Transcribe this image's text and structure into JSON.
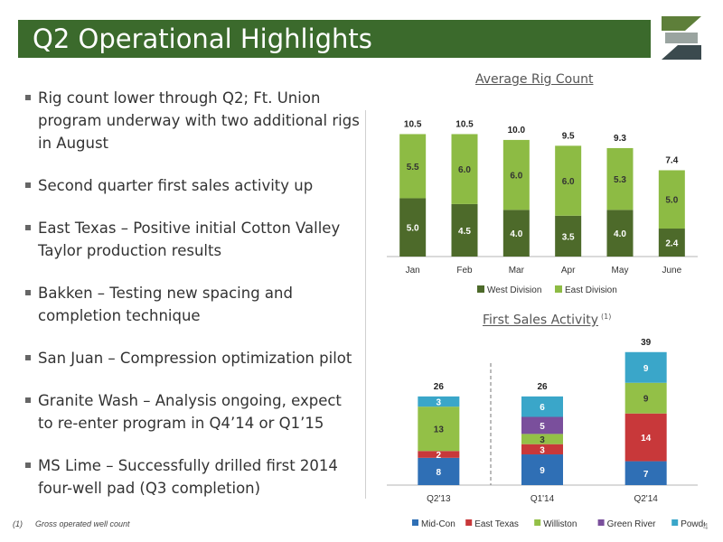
{
  "slide": {
    "title": "Q2 Operational Highlights",
    "page_number": "4",
    "footnote_marker": "(1)",
    "footnote_text": "Gross operated well count"
  },
  "bullets": [
    "Rig count lower through Q2; Ft. Union program underway with two additional rigs in August",
    "Second quarter first sales activity up",
    "East Texas – Positive initial Cotton Valley Taylor production results",
    "Bakken – Testing new spacing and completion technique",
    "San Juan – Compression optimization pilot",
    "Granite Wash – Analysis ongoing, expect to re-enter program in Q4’14 or Q1’15",
    "MS Lime – Successfully drilled first 2014 four-well pad (Q3 completion)"
  ],
  "colors": {
    "title_bar": "#3b6a2c",
    "west_division": "#4d6a2a",
    "east_division": "#8dbb44",
    "mid_con": "#2f6fb5",
    "east_texas": "#c8383a",
    "williston": "#93c047",
    "green_river": "#7a4f9c",
    "powder_river": "#3aa6c9"
  },
  "chart_data": [
    {
      "type": "bar",
      "stacked": true,
      "title": "Average Rig Count",
      "categories": [
        "Jan",
        "Feb",
        "Mar",
        "Apr",
        "May",
        "June"
      ],
      "series": [
        {
          "name": "West Division",
          "values": [
            5.0,
            4.5,
            4.0,
            3.5,
            4.0,
            2.4
          ],
          "labels": [
            "5.0",
            "4.5",
            "4.0",
            "3.5",
            "4.0",
            "2.4"
          ]
        },
        {
          "name": "East Division",
          "values": [
            5.5,
            6.0,
            6.0,
            6.0,
            5.3,
            5.0
          ],
          "labels": [
            "5.5",
            "6.0",
            "6.0",
            "6.0",
            "5.3",
            "5.0"
          ]
        }
      ],
      "totals": [
        "10.5",
        "10.5",
        "10.0",
        "9.5",
        "9.3",
        "7.4"
      ],
      "ylim": [
        0,
        11
      ],
      "legend": "bottom",
      "grid": false
    },
    {
      "type": "bar",
      "stacked": true,
      "title": "First Sales Activity",
      "title_superscript": "(1)",
      "categories": [
        "Q2'13",
        "Q1'14",
        "Q2'14"
      ],
      "series": [
        {
          "name": "Mid-Con",
          "values": [
            8,
            9,
            7
          ]
        },
        {
          "name": "East Texas",
          "values": [
            2,
            3,
            14
          ]
        },
        {
          "name": "Williston",
          "values": [
            13,
            3,
            9
          ]
        },
        {
          "name": "Green River",
          "values": [
            0,
            5,
            0
          ]
        },
        {
          "name": "Powder River",
          "values": [
            3,
            6,
            9
          ]
        }
      ],
      "totals": [
        "26",
        "26",
        "39"
      ],
      "ylim": [
        0,
        40
      ],
      "legend": "bottom",
      "grid": false
    }
  ]
}
